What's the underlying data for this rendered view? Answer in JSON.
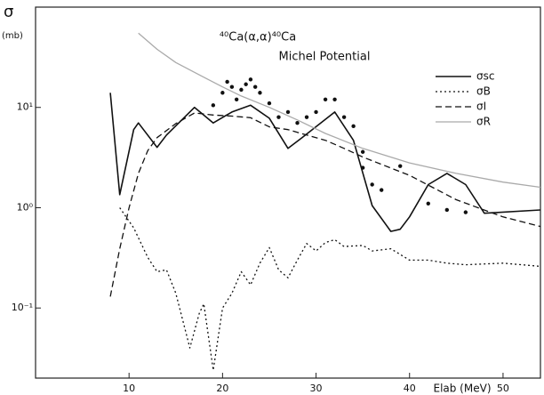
{
  "chart_data": {
    "type": "line",
    "title": "⁴⁰Ca(α,α)⁴⁰Ca",
    "subtitle": "Michel Potential",
    "y_label": "σ",
    "y_unit": "(mb)",
    "x_label": "Elab (MeV)",
    "log_y": true,
    "xlim": [
      0,
      54
    ],
    "ylim": [
      0.02,
      100
    ],
    "xticks": [
      10,
      20,
      30,
      40,
      50
    ],
    "yticks": [
      {
        "value": 0.1,
        "label": "10⁻¹"
      },
      {
        "value": 1,
        "label": "10⁰"
      },
      {
        "value": 10,
        "label": "10¹"
      }
    ],
    "series": [
      {
        "name": "σsc",
        "color": "#111",
        "dash": "none",
        "width": 1.6,
        "x": [
          8,
          9,
          10.5,
          11,
          13,
          14,
          17,
          19,
          21,
          23,
          25,
          27,
          28.5,
          32,
          34,
          36,
          38,
          39,
          40,
          42,
          44,
          46,
          48,
          54
        ],
        "values": [
          14,
          1.35,
          6,
          7,
          4,
          5.3,
          10,
          7,
          9,
          10.5,
          7.8,
          3.9,
          5,
          9,
          4.7,
          1.05,
          0.58,
          0.61,
          0.81,
          1.7,
          2.2,
          1.7,
          0.88,
          0.95
        ]
      },
      {
        "name": "σB",
        "color": "#111",
        "dash": "2,3",
        "width": 1.3,
        "x": [
          9,
          10.5,
          12,
          13,
          14,
          15,
          16.5,
          17.5,
          18,
          19,
          20,
          21,
          22,
          23,
          24,
          25,
          26,
          27,
          28,
          29,
          30,
          31,
          32,
          33,
          35,
          36,
          38,
          40,
          42,
          44,
          46,
          50,
          54
        ],
        "values": [
          1,
          0.63,
          0.32,
          0.23,
          0.24,
          0.14,
          0.04,
          0.088,
          0.11,
          0.024,
          0.1,
          0.14,
          0.23,
          0.17,
          0.28,
          0.4,
          0.24,
          0.2,
          0.3,
          0.44,
          0.37,
          0.45,
          0.48,
          0.41,
          0.42,
          0.37,
          0.39,
          0.3,
          0.3,
          0.28,
          0.27,
          0.28,
          0.26
        ]
      },
      {
        "name": "σI",
        "color": "#111",
        "dash": "7,4",
        "width": 1.3,
        "x": [
          8,
          9,
          10,
          11,
          12,
          13,
          15,
          17,
          19,
          21,
          23,
          25,
          27,
          29,
          31,
          33,
          35,
          40,
          45,
          50,
          54
        ],
        "values": [
          0.13,
          0.39,
          1,
          2.2,
          3.7,
          5,
          6.9,
          8.8,
          8.4,
          8.2,
          7.9,
          6.4,
          6,
          5.3,
          4.7,
          3.9,
          3.2,
          2.1,
          1.2,
          0.81,
          0.65
        ]
      },
      {
        "name": "σR",
        "color": "#aaa",
        "dash": "none",
        "width": 1.3,
        "x": [
          11,
          13,
          15,
          18,
          20,
          22,
          25,
          28,
          31,
          35,
          40,
          45,
          50,
          54
        ],
        "values": [
          55,
          38,
          28,
          20,
          16,
          13,
          10,
          7.5,
          5.5,
          3.9,
          2.8,
          2.2,
          1.8,
          1.6
        ]
      },
      {
        "marker": "dot",
        "color": "#111",
        "x": [
          19,
          20,
          20.5,
          21,
          21.5,
          22,
          22.5,
          23,
          23.5,
          24,
          25,
          26,
          27,
          28,
          29,
          30,
          31,
          32,
          33,
          34,
          35,
          35,
          36,
          37,
          39,
          42,
          44,
          46
        ],
        "values": [
          10.5,
          14,
          18,
          16,
          12,
          15,
          17,
          19,
          16,
          14,
          11,
          8,
          9,
          7,
          8,
          9,
          12,
          12,
          8,
          6.5,
          3.6,
          2.5,
          1.7,
          1.5,
          2.6,
          1.1,
          0.95,
          0.9
        ]
      }
    ]
  }
}
